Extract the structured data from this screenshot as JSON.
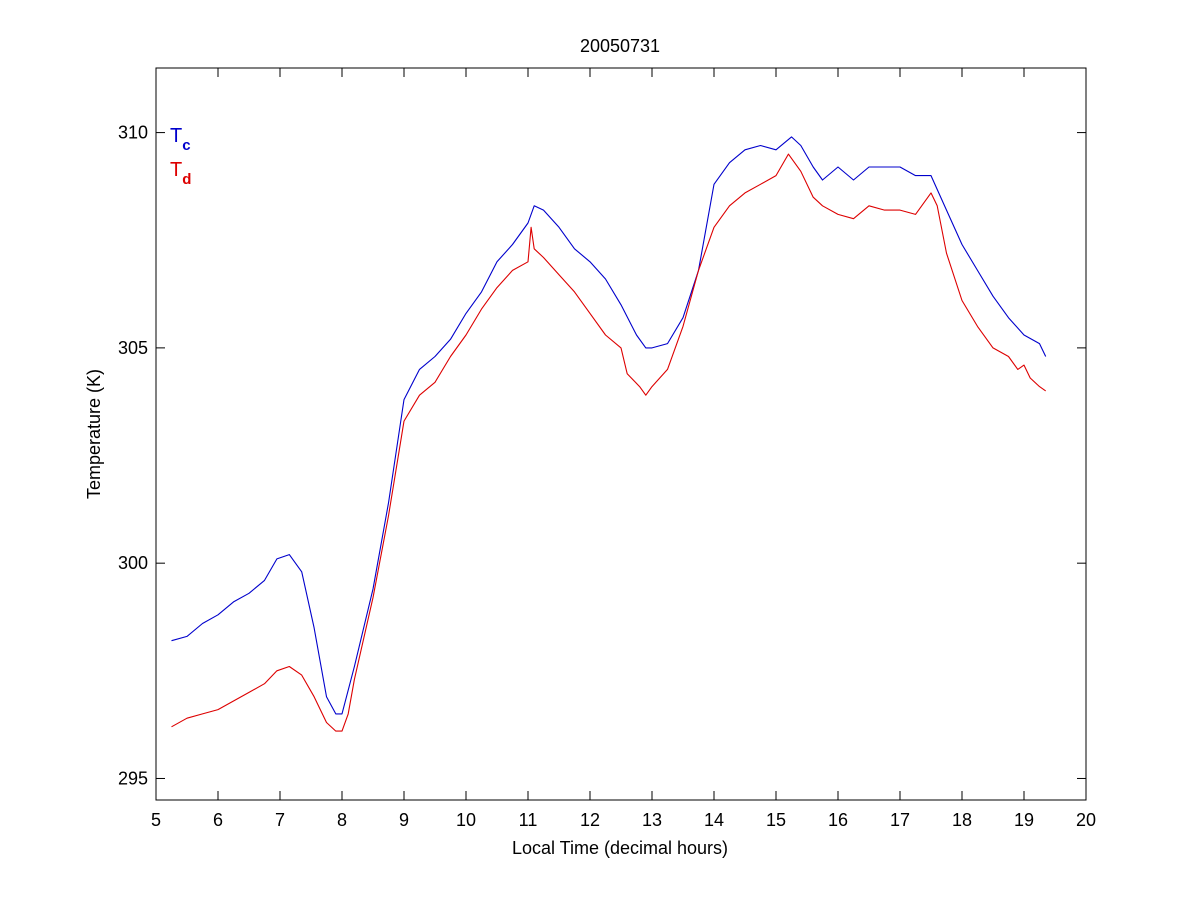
{
  "chart_data": {
    "type": "line",
    "title": "20050731",
    "xlabel": "Local Time (decimal hours)",
    "ylabel": "Temperature (K)",
    "xlim": [
      5,
      20
    ],
    "ylim": [
      294.5,
      311.5
    ],
    "xticks": [
      5,
      6,
      7,
      8,
      9,
      10,
      11,
      12,
      13,
      14,
      15,
      16,
      17,
      18,
      19,
      20
    ],
    "yticks": [
      295,
      300,
      305,
      310
    ],
    "grid": false,
    "legend": {
      "placement": "top-left",
      "entries": [
        {
          "base": "T",
          "sub": "c",
          "color": "#0000cc"
        },
        {
          "base": "T",
          "sub": "d",
          "color": "#dd0000"
        }
      ]
    },
    "series": [
      {
        "key": "Tc",
        "color": "#0000cc",
        "x": [
          5.25,
          5.5,
          5.75,
          6.0,
          6.25,
          6.5,
          6.75,
          6.95,
          7.15,
          7.35,
          7.55,
          7.75,
          7.9,
          8.0,
          8.2,
          8.5,
          8.75,
          9.0,
          9.25,
          9.5,
          9.75,
          10.0,
          10.25,
          10.5,
          10.75,
          11.0,
          11.1,
          11.25,
          11.5,
          11.75,
          12.0,
          12.25,
          12.5,
          12.75,
          12.9,
          13.0,
          13.25,
          13.5,
          13.75,
          14.0,
          14.25,
          14.5,
          14.75,
          15.0,
          15.25,
          15.4,
          15.6,
          15.75,
          16.0,
          16.25,
          16.5,
          16.75,
          17.0,
          17.25,
          17.5,
          17.75,
          18.0,
          18.25,
          18.5,
          18.75,
          19.0,
          19.25,
          19.35
        ],
        "y": [
          298.2,
          298.3,
          298.6,
          298.8,
          299.1,
          299.3,
          299.6,
          300.1,
          300.2,
          299.8,
          298.5,
          296.9,
          296.5,
          296.5,
          297.6,
          299.4,
          301.4,
          303.8,
          304.5,
          304.8,
          305.2,
          305.8,
          306.3,
          307.0,
          307.4,
          307.9,
          308.3,
          308.2,
          307.8,
          307.3,
          307.0,
          306.6,
          306.0,
          305.3,
          305.0,
          305.0,
          305.1,
          305.7,
          306.8,
          308.8,
          309.3,
          309.6,
          309.7,
          309.6,
          309.9,
          309.7,
          309.2,
          308.9,
          309.2,
          308.9,
          309.2,
          309.2,
          309.2,
          309.0,
          309.0,
          308.2,
          307.4,
          306.8,
          306.2,
          305.7,
          305.3,
          305.1,
          304.8
        ]
      },
      {
        "key": "Td",
        "color": "#dd0000",
        "x": [
          5.25,
          5.5,
          5.75,
          6.0,
          6.25,
          6.5,
          6.75,
          6.95,
          7.15,
          7.35,
          7.55,
          7.75,
          7.9,
          8.0,
          8.1,
          8.2,
          8.5,
          8.75,
          9.0,
          9.25,
          9.5,
          9.75,
          10.0,
          10.25,
          10.5,
          10.75,
          11.0,
          11.05,
          11.1,
          11.25,
          11.5,
          11.75,
          12.0,
          12.25,
          12.5,
          12.6,
          12.8,
          12.9,
          13.0,
          13.25,
          13.5,
          13.75,
          14.0,
          14.25,
          14.5,
          14.75,
          15.0,
          15.2,
          15.4,
          15.6,
          15.75,
          16.0,
          16.25,
          16.5,
          16.75,
          17.0,
          17.25,
          17.5,
          17.6,
          17.75,
          18.0,
          18.25,
          18.5,
          18.75,
          18.9,
          19.0,
          19.1,
          19.25,
          19.35
        ],
        "y": [
          296.2,
          296.4,
          296.5,
          296.6,
          296.8,
          297.0,
          297.2,
          297.5,
          297.6,
          297.4,
          296.9,
          296.3,
          296.1,
          296.1,
          296.5,
          297.3,
          299.2,
          301.1,
          303.3,
          303.9,
          304.2,
          304.8,
          305.3,
          305.9,
          306.4,
          306.8,
          307.0,
          307.8,
          307.3,
          307.1,
          306.7,
          306.3,
          305.8,
          305.3,
          305.0,
          304.4,
          304.1,
          303.9,
          304.1,
          304.5,
          305.5,
          306.8,
          307.8,
          308.3,
          308.6,
          308.8,
          309.0,
          309.5,
          309.1,
          308.5,
          308.3,
          308.1,
          308.0,
          308.3,
          308.2,
          308.2,
          308.1,
          308.6,
          308.3,
          307.2,
          306.1,
          305.5,
          305.0,
          304.8,
          304.5,
          304.6,
          304.3,
          304.1,
          304.0
        ]
      }
    ]
  }
}
